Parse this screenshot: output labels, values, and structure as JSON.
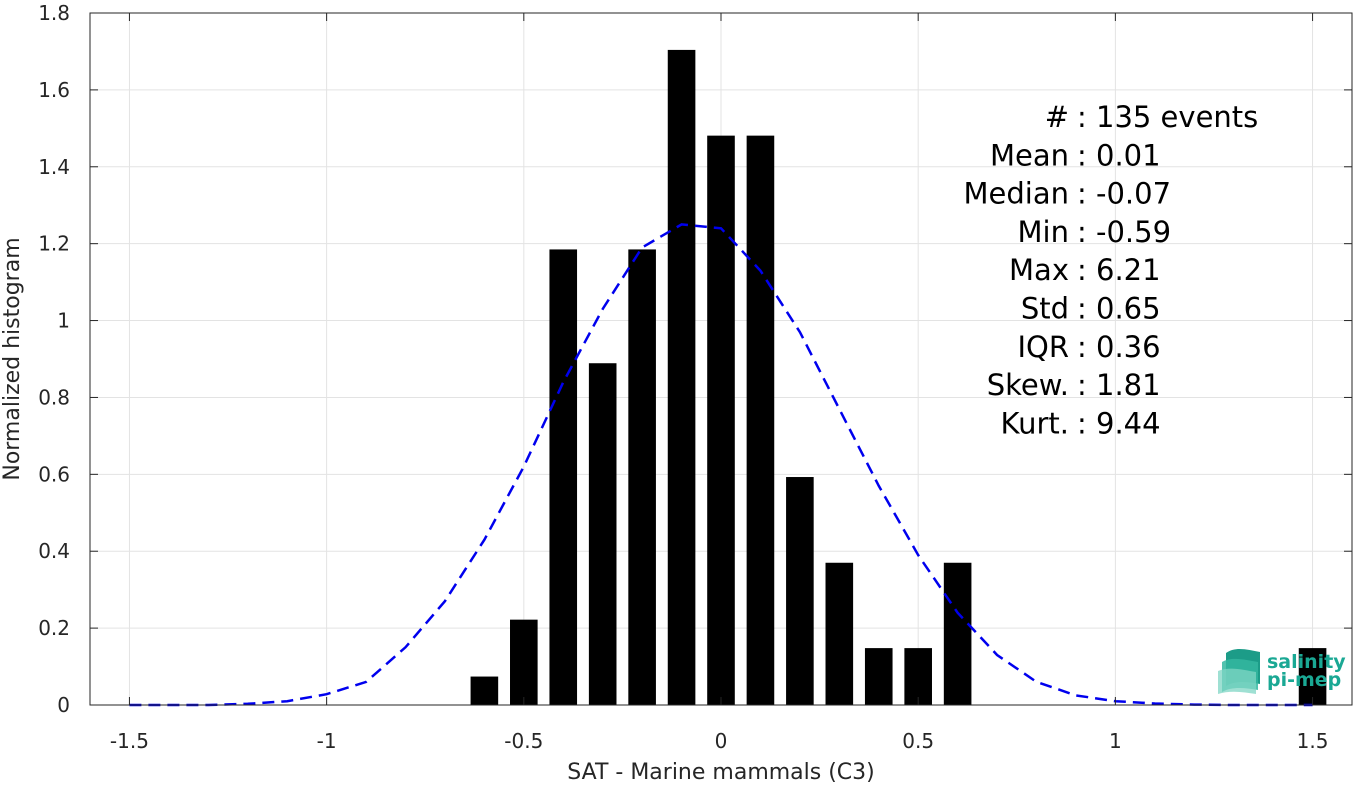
{
  "chart_data": {
    "type": "bar",
    "xlabel": "SAT - Marine mammals (C3)",
    "ylabel": "Normalized histogram",
    "xlim": [
      -1.6,
      1.6
    ],
    "ylim": [
      0,
      1.8
    ],
    "xticks": [
      -1.5,
      -1,
      -0.5,
      0,
      0.5,
      1,
      1.5
    ],
    "xtick_labels": [
      "-1.5",
      "-1",
      "-0.5",
      "0",
      "0.5",
      "1",
      "1.5"
    ],
    "yticks": [
      0,
      0.2,
      0.4,
      0.6,
      0.8,
      1,
      1.2,
      1.4,
      1.6,
      1.8
    ],
    "ytick_labels": [
      "0",
      "0.2",
      "0.4",
      "0.6",
      "0.8",
      "1",
      "1.2",
      "1.4",
      "1.6",
      "1.8"
    ],
    "grid": true,
    "bar_color": "#000000",
    "bars": {
      "x": [
        -0.6,
        -0.5,
        -0.4,
        -0.3,
        -0.2,
        -0.1,
        0.0,
        0.1,
        0.2,
        0.3,
        0.4,
        0.5,
        0.6,
        1.5
      ],
      "values": [
        0.074,
        0.222,
        1.185,
        0.889,
        1.185,
        1.704,
        1.481,
        1.481,
        0.593,
        0.37,
        0.148,
        0.148,
        0.37,
        0.148
      ],
      "width": 0.07
    },
    "fit_curve": {
      "style": "dashed",
      "color": "#0000ee",
      "x": [
        -1.5,
        -1.4,
        -1.3,
        -1.2,
        -1.1,
        -1.0,
        -0.9,
        -0.8,
        -0.7,
        -0.6,
        -0.5,
        -0.4,
        -0.3,
        -0.2,
        -0.1,
        0.0,
        0.1,
        0.2,
        0.3,
        0.4,
        0.5,
        0.6,
        0.7,
        0.8,
        0.9,
        1.0,
        1.1,
        1.2,
        1.3,
        1.4,
        1.5
      ],
      "values": [
        0.0,
        0.0,
        0.0,
        0.003,
        0.01,
        0.028,
        0.06,
        0.15,
        0.27,
        0.43,
        0.62,
        0.84,
        1.03,
        1.19,
        1.25,
        1.24,
        1.13,
        0.97,
        0.77,
        0.57,
        0.39,
        0.24,
        0.13,
        0.06,
        0.025,
        0.01,
        0.004,
        0.001,
        0.0,
        0.0,
        0.0
      ]
    },
    "annotations": [
      {
        "label": "#",
        "value": ": 135 events"
      },
      {
        "label": "Mean",
        "value": ": 0.01"
      },
      {
        "label": "Median",
        "value": ": -0.07"
      },
      {
        "label": "Min",
        "value": ": -0.59"
      },
      {
        "label": "Max",
        "value": ": 6.21"
      },
      {
        "label": "Std",
        "value": ": 0.65"
      },
      {
        "label": "IQR",
        "value": ": 0.36"
      },
      {
        "label": "Skew.",
        "value": ": 1.81"
      },
      {
        "label": "Kurt.",
        "value": ": 9.44"
      }
    ]
  },
  "logo": {
    "line1": "salinity",
    "line2": "pi-mep",
    "color": "#1aa894"
  }
}
